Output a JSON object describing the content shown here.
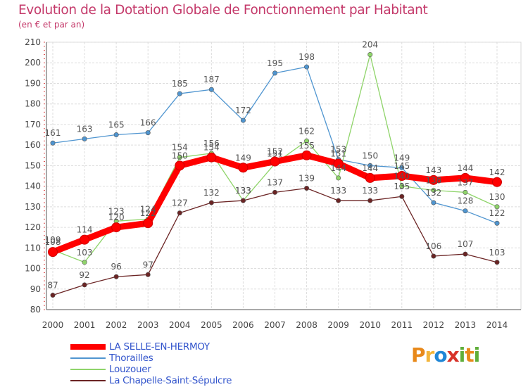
{
  "page": {
    "title": "Evolution de la Dotation Globale de Fonctionnement par Habitant",
    "subtitle": "(en € et par an)"
  },
  "logo": {
    "text": "Proxiti",
    "letters": [
      "P",
      "r",
      "o",
      "x",
      "i",
      "t",
      "i"
    ],
    "colors": [
      "#e8891a",
      "#f2b53a",
      "#1f86d6",
      "#d8332a",
      "#5fae3a",
      "#e8891a",
      "#5fae3a"
    ]
  },
  "chart_data": {
    "type": "line",
    "title": "Evolution de la Dotation Globale de Fonctionnement par Habitant",
    "subtitle": "(en € et par an)",
    "xlabel": "",
    "ylabel": "",
    "ylim": [
      80,
      210
    ],
    "yticks": [
      80,
      90,
      100,
      110,
      120,
      130,
      140,
      150,
      160,
      170,
      180,
      190,
      200,
      210
    ],
    "categories": [
      "2000",
      "2001",
      "2002",
      "2003",
      "2004",
      "2005",
      "2006",
      "2007",
      "2008",
      "2009",
      "2010",
      "2011",
      "2012",
      "2013",
      "2014"
    ],
    "grid": true,
    "legend_position": "bottom-left",
    "series": [
      {
        "name": "LA SELLE-EN-HERMOY",
        "color": "#ff0000",
        "emphasis": true,
        "values": [
          108,
          114,
          120,
          122,
          150,
          154,
          149,
          152,
          155,
          151,
          144,
          145,
          143,
          144,
          142
        ]
      },
      {
        "name": "Thorailles",
        "color": "#4f95d0",
        "emphasis": false,
        "values": [
          161,
          163,
          165,
          166,
          185,
          187,
          172,
          195,
          198,
          153,
          150,
          149,
          132,
          128,
          122
        ]
      },
      {
        "name": "Louzouer",
        "color": "#8fd46a",
        "emphasis": false,
        "values": [
          109,
          103,
          123,
          124,
          154,
          156,
          133,
          151,
          162,
          144,
          204,
          140,
          138,
          137,
          130
        ]
      },
      {
        "name": "La Chapelle-Saint-Sépulcre",
        "color": "#6b2424",
        "emphasis": false,
        "values": [
          87,
          92,
          96,
          97,
          127,
          132,
          133,
          137,
          139,
          133,
          133,
          135,
          106,
          107,
          103
        ]
      }
    ]
  }
}
